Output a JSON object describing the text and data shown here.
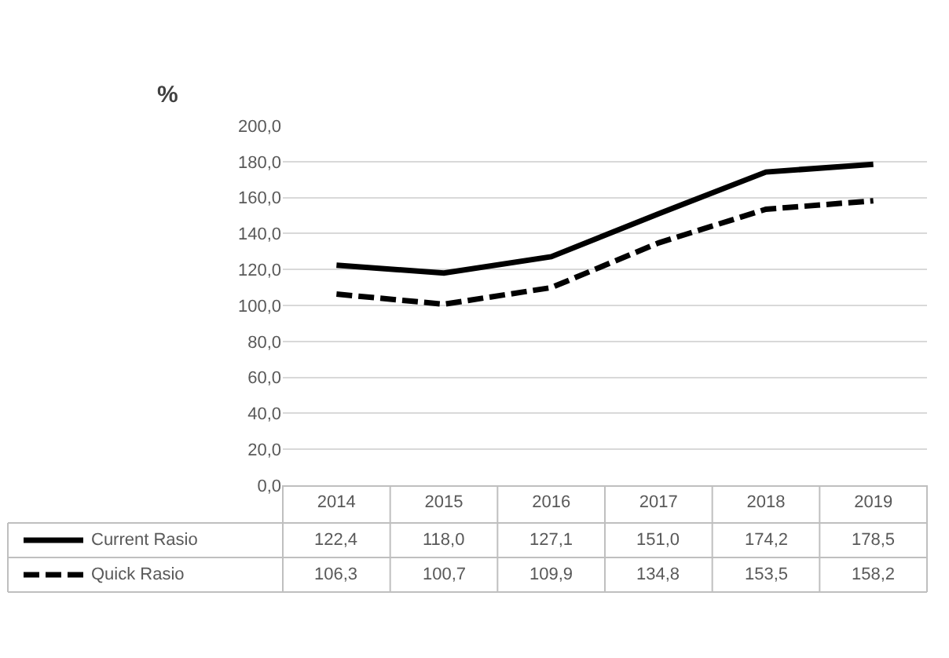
{
  "chart_data": {
    "type": "line",
    "ylabel": "%",
    "categories": [
      "2014",
      "2015",
      "2016",
      "2017",
      "2018",
      "2019"
    ],
    "series": [
      {
        "name": "Current Rasio",
        "color": "#000000",
        "line_style": "solid",
        "values": [
          122.4,
          118.0,
          127.1,
          151.0,
          174.2,
          178.5
        ],
        "value_labels": [
          "122,4",
          "118,0",
          "127,1",
          "151,0",
          "174,2",
          "178,5"
        ]
      },
      {
        "name": "Quick Rasio",
        "color": "#000000",
        "line_style": "dashed",
        "values": [
          106.3,
          100.7,
          109.9,
          134.8,
          153.5,
          158.2
        ],
        "value_labels": [
          "106,3",
          "100,7",
          "109,9",
          "134,8",
          "153,5",
          "158,2"
        ]
      }
    ],
    "ylim": [
      0,
      200
    ],
    "yticks": [
      {
        "value": 0,
        "label": "0,0"
      },
      {
        "value": 20,
        "label": "20,0"
      },
      {
        "value": 40,
        "label": "40,0"
      },
      {
        "value": 60,
        "label": "60,0"
      },
      {
        "value": 80,
        "label": "80,0"
      },
      {
        "value": 100,
        "label": "100,0"
      },
      {
        "value": 120,
        "label": "120,0"
      },
      {
        "value": 140,
        "label": "140,0"
      },
      {
        "value": 160,
        "label": "160,0"
      },
      {
        "value": 180,
        "label": "180,0"
      },
      {
        "value": 200,
        "label": "200,0"
      }
    ],
    "grid": "y",
    "marker": "none",
    "legend": "bottom left"
  }
}
